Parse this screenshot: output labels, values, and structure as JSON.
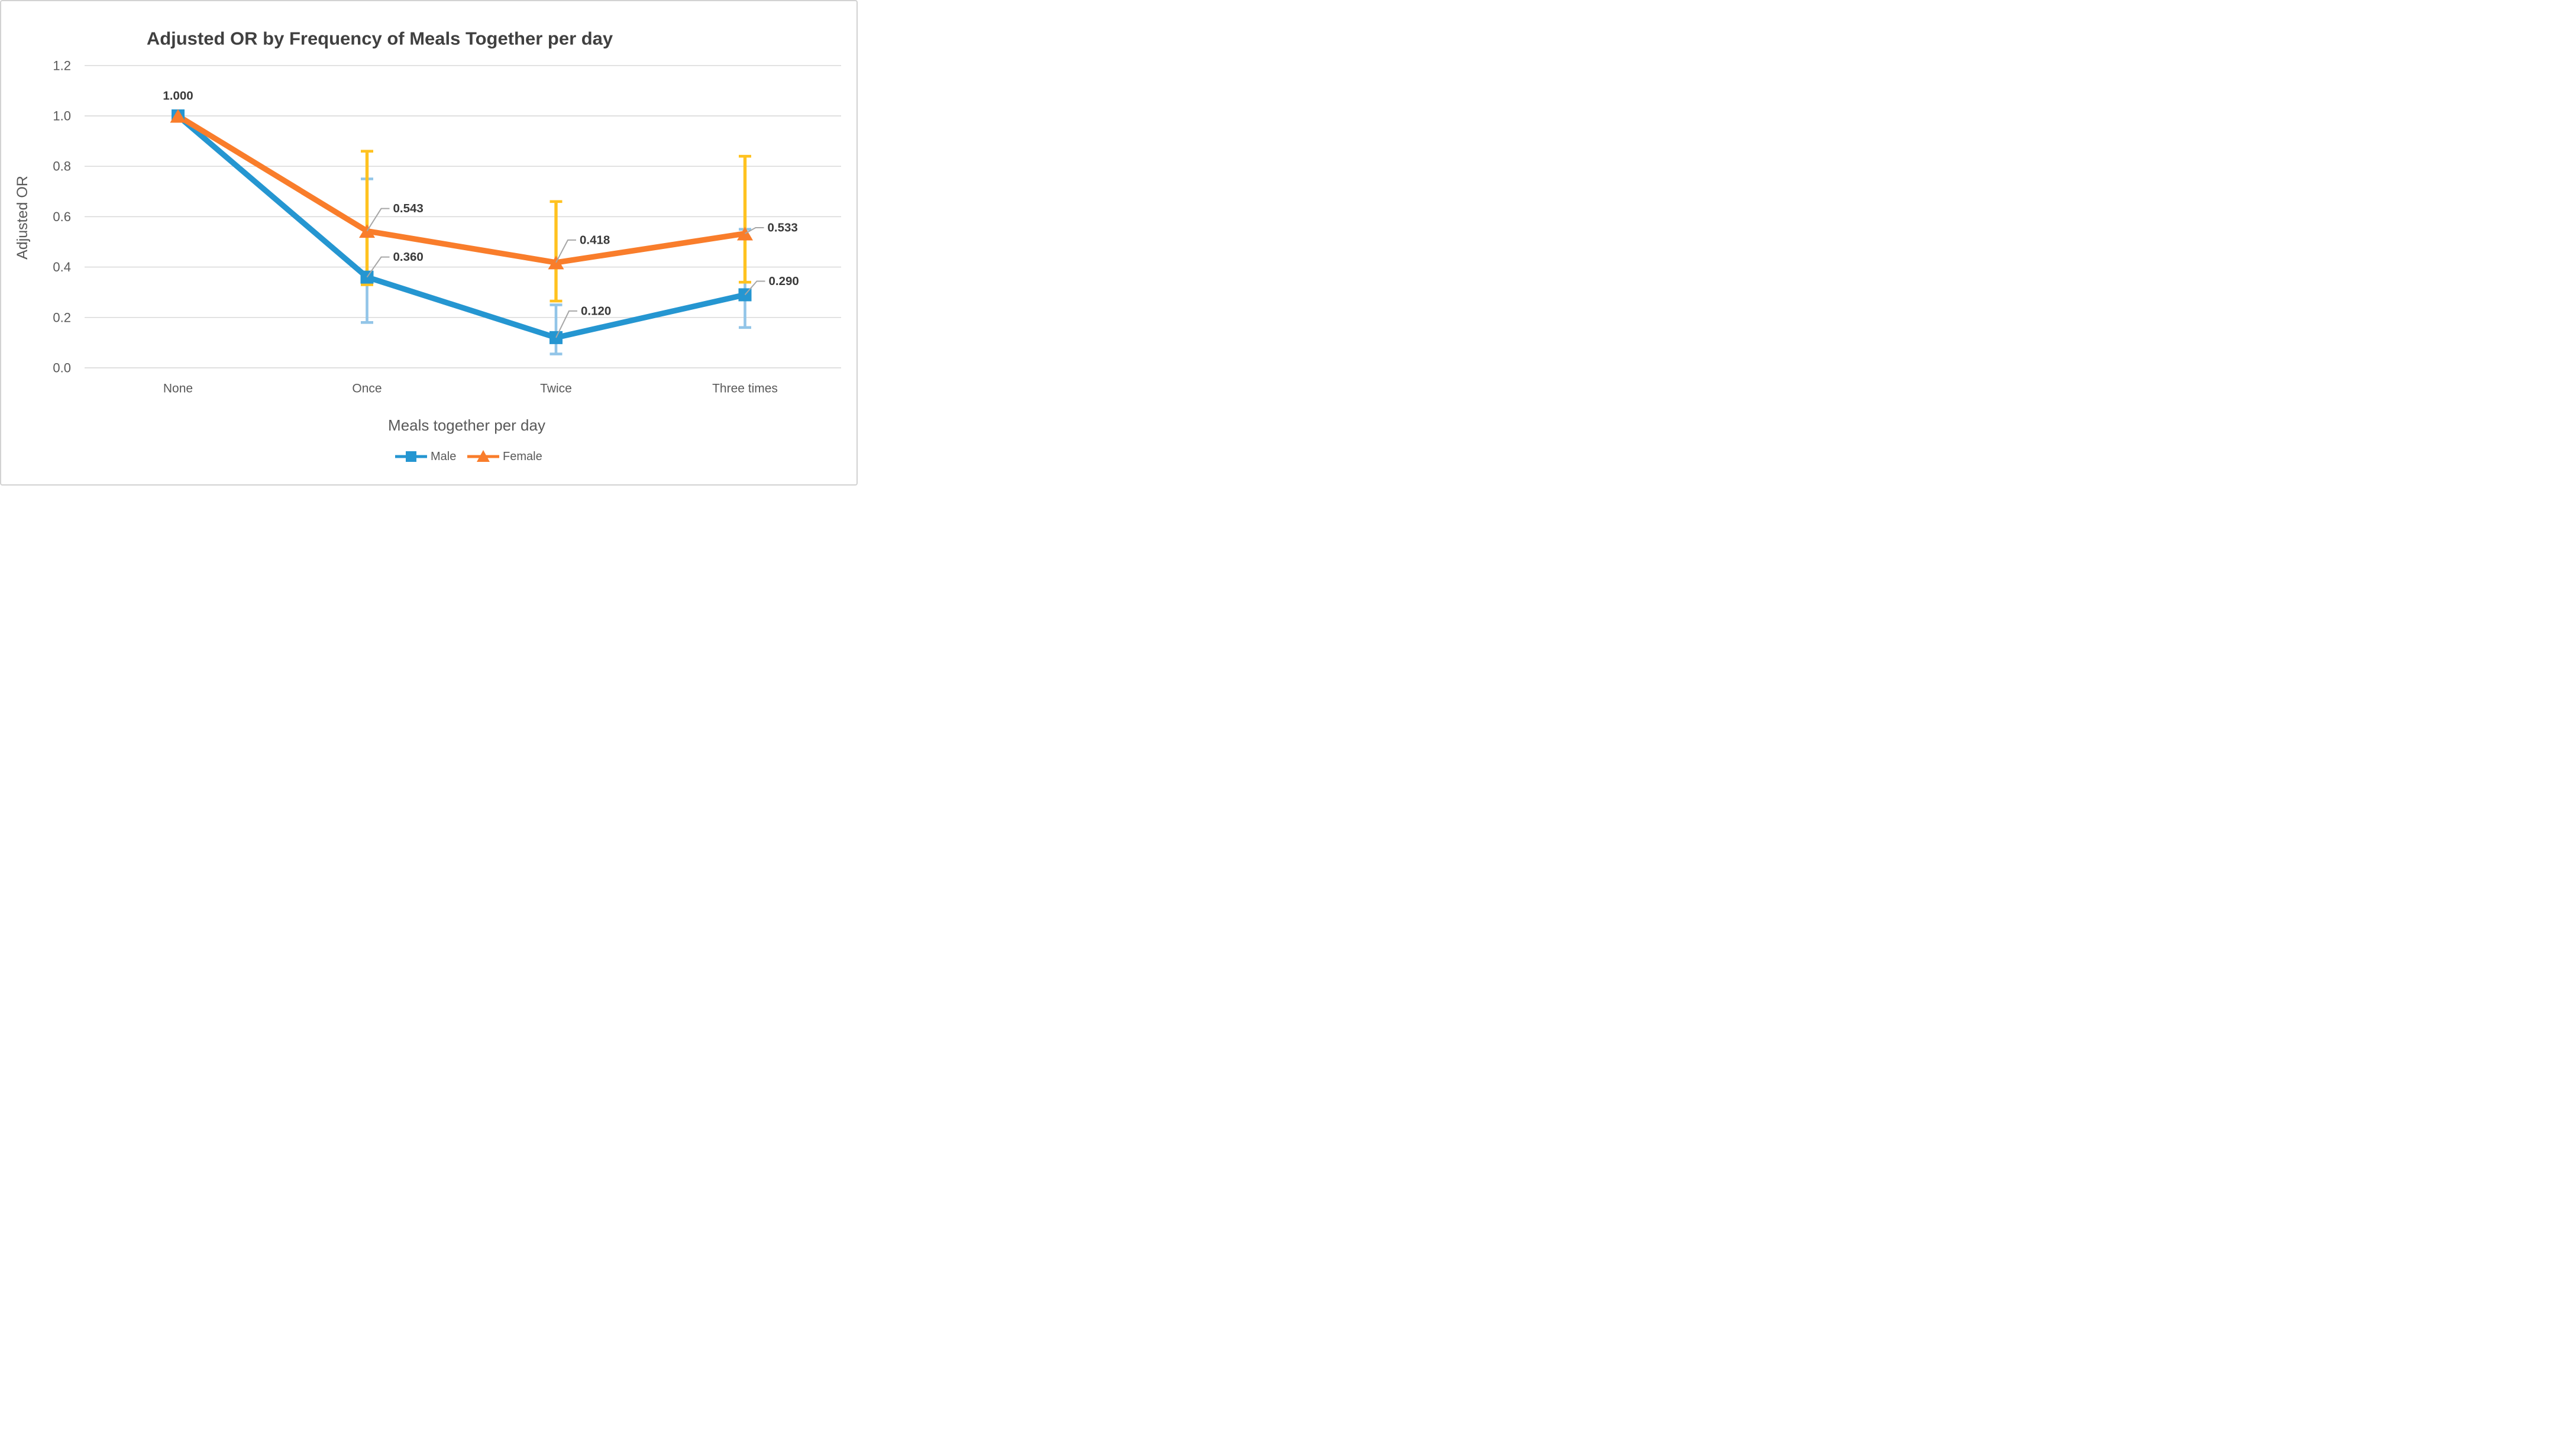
{
  "title": "Adjusted OR by Frequency of Meals Together per day",
  "y_axis": {
    "title": "Adjusted OR",
    "ticks": [
      "1.2",
      "1.0",
      "0.8",
      "0.6",
      "0.4",
      "0.2",
      "0.0"
    ]
  },
  "x_axis": {
    "title": "Meals together per day"
  },
  "legend": {
    "items": [
      {
        "label": "Male",
        "marker": "square"
      },
      {
        "label": "Female",
        "marker": "triangle"
      }
    ]
  },
  "colors": {
    "male_line": "#2596D1",
    "male_error_bar": "#92C5E8",
    "female_line": "#F97D2B",
    "female_error_bar": "#FFC220",
    "gridline": "#D6D6D6",
    "axis_text": "#595959",
    "title_text": "#404040",
    "data_label_text": "#3A3A3A",
    "leader_line": "#A6A6A6"
  },
  "chart_data": {
    "type": "line",
    "categories": [
      "None",
      "Once",
      "Twice",
      "Three times"
    ],
    "series": [
      {
        "name": "Male",
        "marker": "square",
        "color": "#2596D1",
        "error_color": "#92C5E8",
        "values": [
          1.0,
          0.36,
          0.12,
          0.29
        ],
        "data_labels": [
          "1.000",
          "0.360",
          "0.120",
          "0.290"
        ],
        "error_low": [
          null,
          0.18,
          0.055,
          0.16
        ],
        "error_high": [
          null,
          0.75,
          0.25,
          0.55
        ]
      },
      {
        "name": "Female",
        "marker": "triangle",
        "color": "#F97D2B",
        "error_color": "#FFC220",
        "values": [
          1.0,
          0.543,
          0.418,
          0.533
        ],
        "data_labels": [
          null,
          "0.543",
          "0.418",
          "0.533"
        ],
        "error_low": [
          null,
          0.33,
          0.265,
          0.34
        ],
        "error_high": [
          null,
          0.86,
          0.66,
          0.84
        ]
      }
    ],
    "title": "Adjusted OR by Frequency of Meals Together per day",
    "xlabel": "Meals together per day",
    "ylabel": "Adjusted OR",
    "ylim": [
      0.0,
      1.2
    ],
    "ytick_step": 0.2,
    "grid": true,
    "error_bars": true,
    "legend_position": "bottom"
  }
}
